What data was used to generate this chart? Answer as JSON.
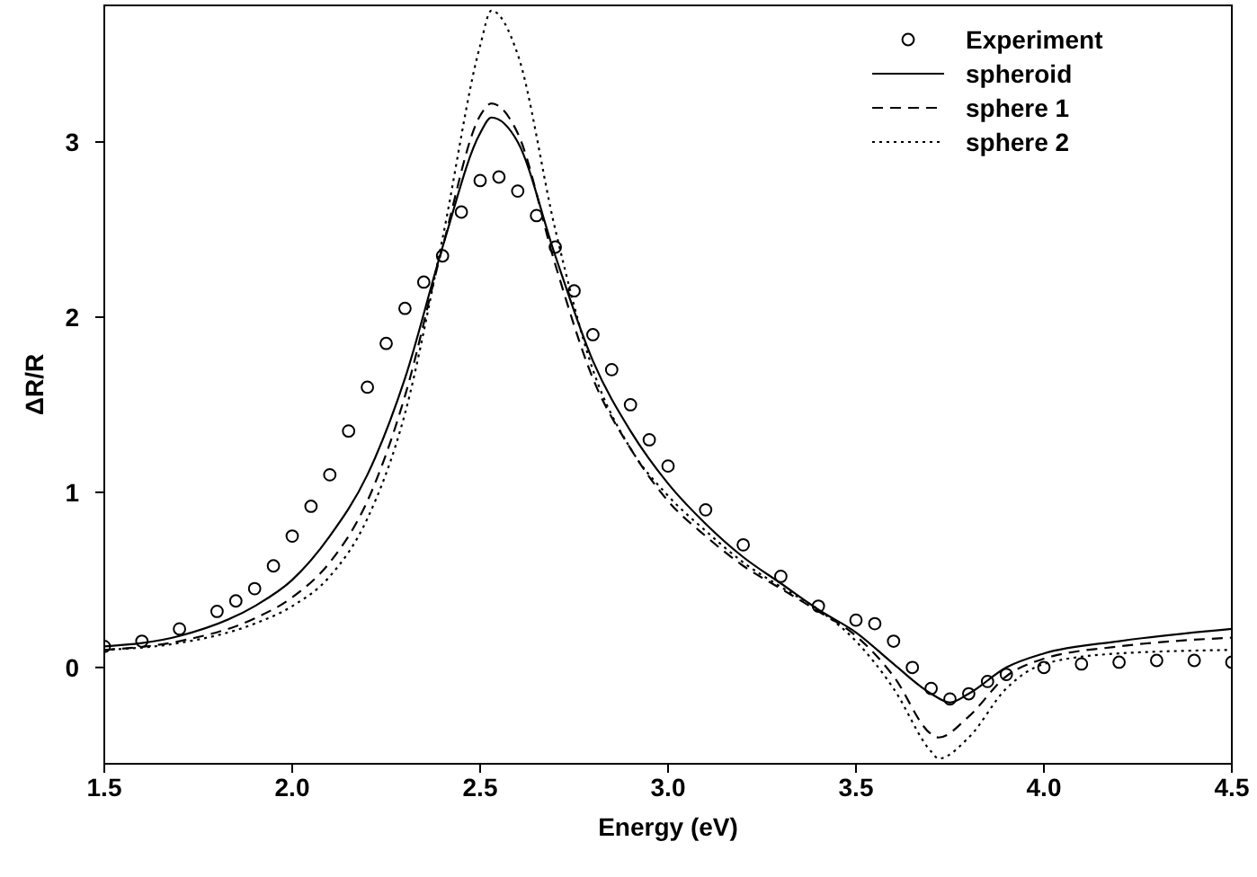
{
  "chart_data": {
    "type": "line",
    "xlabel": "Energy (eV)",
    "ylabel": "ΔR/R",
    "xlim": [
      1.5,
      4.5
    ],
    "ylim": [
      -0.55,
      3.78
    ],
    "xticks": [
      {
        "value": 1.5,
        "label": "1.5"
      },
      {
        "value": 2,
        "label": "2.0"
      },
      {
        "value": 2.5,
        "label": "2.5"
      },
      {
        "value": 3,
        "label": "3.0"
      },
      {
        "value": 3.5,
        "label": "3.5"
      },
      {
        "value": 4,
        "label": "4.0"
      },
      {
        "value": 4.5,
        "label": "4.5"
      }
    ],
    "yticks": [
      0,
      1,
      2,
      3
    ],
    "grid": false,
    "legend": "top right",
    "series": [
      {
        "name": "Experiment",
        "type": "scatter",
        "marker": "circle",
        "color": "#000000",
        "x": [
          1.5,
          1.6,
          1.7,
          1.8,
          1.85,
          1.9,
          1.95,
          2.0,
          2.05,
          2.1,
          2.15,
          2.2,
          2.25,
          2.3,
          2.35,
          2.4,
          2.45,
          2.5,
          2.55,
          2.6,
          2.65,
          2.7,
          2.75,
          2.8,
          2.85,
          2.9,
          2.95,
          3.0,
          3.1,
          3.2,
          3.3,
          3.4,
          3.5,
          3.55,
          3.6,
          3.65,
          3.7,
          3.75,
          3.8,
          3.85,
          3.9,
          4.0,
          4.1,
          4.2,
          4.3,
          4.4,
          4.5
        ],
        "values": [
          0.12,
          0.15,
          0.22,
          0.32,
          0.38,
          0.45,
          0.58,
          0.75,
          0.92,
          1.1,
          1.35,
          1.6,
          1.85,
          2.05,
          2.2,
          2.35,
          2.6,
          2.78,
          2.8,
          2.72,
          2.58,
          2.4,
          2.15,
          1.9,
          1.7,
          1.5,
          1.3,
          1.15,
          0.9,
          0.7,
          0.52,
          0.35,
          0.27,
          0.25,
          0.15,
          0.0,
          -0.12,
          -0.18,
          -0.15,
          -0.08,
          -0.04,
          0.0,
          0.02,
          0.03,
          0.04,
          0.04,
          0.03
        ]
      },
      {
        "name": "spheroid",
        "line_style": "solid",
        "color": "#000000",
        "x": [
          1.5,
          1.7,
          1.9,
          2.0,
          2.1,
          2.2,
          2.3,
          2.4,
          2.5,
          2.53,
          2.6,
          2.7,
          2.8,
          2.9,
          3.0,
          3.1,
          3.2,
          3.3,
          3.4,
          3.5,
          3.6,
          3.7,
          3.75,
          3.8,
          3.9,
          4.0,
          4.2,
          4.5
        ],
        "values": [
          0.12,
          0.18,
          0.35,
          0.5,
          0.75,
          1.1,
          1.65,
          2.4,
          3.05,
          3.14,
          3.0,
          2.35,
          1.75,
          1.35,
          1.05,
          0.82,
          0.63,
          0.48,
          0.33,
          0.2,
          0.02,
          -0.15,
          -0.2,
          -0.15,
          0.0,
          0.08,
          0.15,
          0.22
        ]
      },
      {
        "name": "sphere 1",
        "line_style": "dashed",
        "color": "#000000",
        "x": [
          1.5,
          1.7,
          1.9,
          2.0,
          2.1,
          2.2,
          2.3,
          2.4,
          2.5,
          2.53,
          2.6,
          2.7,
          2.8,
          2.9,
          3.0,
          3.1,
          3.2,
          3.3,
          3.4,
          3.5,
          3.6,
          3.7,
          3.72,
          3.8,
          3.9,
          4.0,
          4.2,
          4.5
        ],
        "values": [
          0.1,
          0.15,
          0.28,
          0.4,
          0.6,
          0.95,
          1.55,
          2.4,
          3.15,
          3.22,
          3.05,
          2.3,
          1.65,
          1.25,
          0.95,
          0.75,
          0.58,
          0.45,
          0.32,
          0.18,
          -0.05,
          -0.38,
          -0.4,
          -0.28,
          -0.05,
          0.05,
          0.12,
          0.17
        ]
      },
      {
        "name": "sphere 2",
        "line_style": "dotted",
        "color": "#000000",
        "x": [
          1.5,
          1.7,
          1.9,
          2.0,
          2.1,
          2.2,
          2.3,
          2.4,
          2.5,
          2.53,
          2.6,
          2.7,
          2.8,
          2.9,
          3.0,
          3.1,
          3.2,
          3.3,
          3.4,
          3.5,
          3.6,
          3.7,
          3.72,
          3.8,
          3.9,
          4.0,
          4.2,
          4.5
        ],
        "values": [
          0.1,
          0.14,
          0.25,
          0.35,
          0.52,
          0.85,
          1.45,
          2.45,
          3.55,
          3.75,
          3.5,
          2.5,
          1.7,
          1.25,
          0.98,
          0.78,
          0.6,
          0.46,
          0.33,
          0.15,
          -0.12,
          -0.48,
          -0.52,
          -0.4,
          -0.12,
          0.02,
          0.08,
          0.1
        ]
      }
    ]
  }
}
